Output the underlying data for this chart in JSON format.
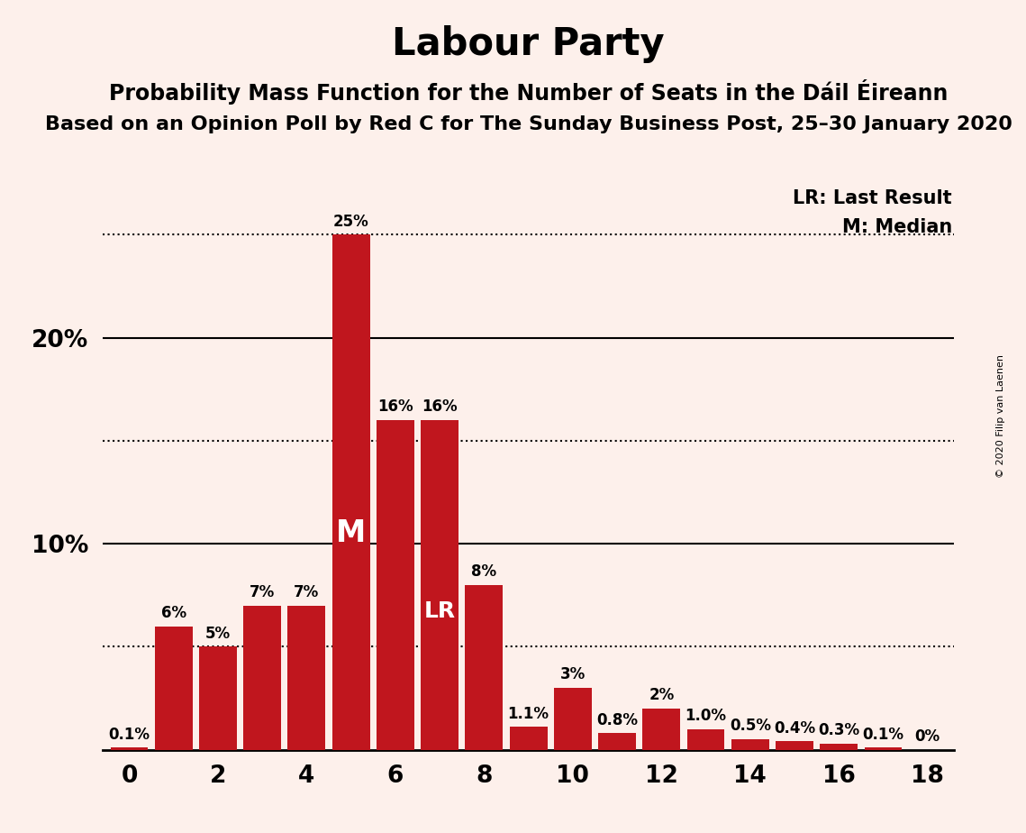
{
  "title": "Labour Party",
  "subtitle1": "Probability Mass Function for the Number of Seats in the Dáil Éireann",
  "subtitle2": "Based on an Opinion Poll by Red C for The Sunday Business Post, 25–30 January 2020",
  "copyright": "© 2020 Filip van Laenen",
  "legend_lr": "LR: Last Result",
  "legend_m": "M: Median",
  "seats": [
    0,
    1,
    2,
    3,
    4,
    5,
    6,
    7,
    8,
    9,
    10,
    11,
    12,
    13,
    14,
    15,
    16,
    17,
    18
  ],
  "values": [
    0.1,
    6.0,
    5.0,
    7.0,
    7.0,
    25.0,
    16.0,
    16.0,
    8.0,
    1.1,
    3.0,
    0.8,
    2.0,
    1.0,
    0.5,
    0.4,
    0.3,
    0.1,
    0.0
  ],
  "labels": [
    "0.1%",
    "6%",
    "5%",
    "7%",
    "7%",
    "25%",
    "16%",
    "16%",
    "8%",
    "1.1%",
    "3%",
    "0.8%",
    "2%",
    "1.0%",
    "0.5%",
    "0.4%",
    "0.3%",
    "0.1%",
    "0%"
  ],
  "bar_color": "#c0161e",
  "background_color": "#fdf0eb",
  "median_seat": 5,
  "lr_seat": 7,
  "ylim": [
    0,
    27.5
  ],
  "yticks_solid": [
    10.0,
    20.0
  ],
  "yticks_dotted": [
    5.0,
    15.0,
    25.0
  ],
  "ytick_labels_solid": [
    10.0,
    20.0
  ],
  "title_fontsize": 30,
  "subtitle1_fontsize": 17,
  "subtitle2_fontsize": 16,
  "label_fontsize": 12,
  "tick_fontsize": 19
}
